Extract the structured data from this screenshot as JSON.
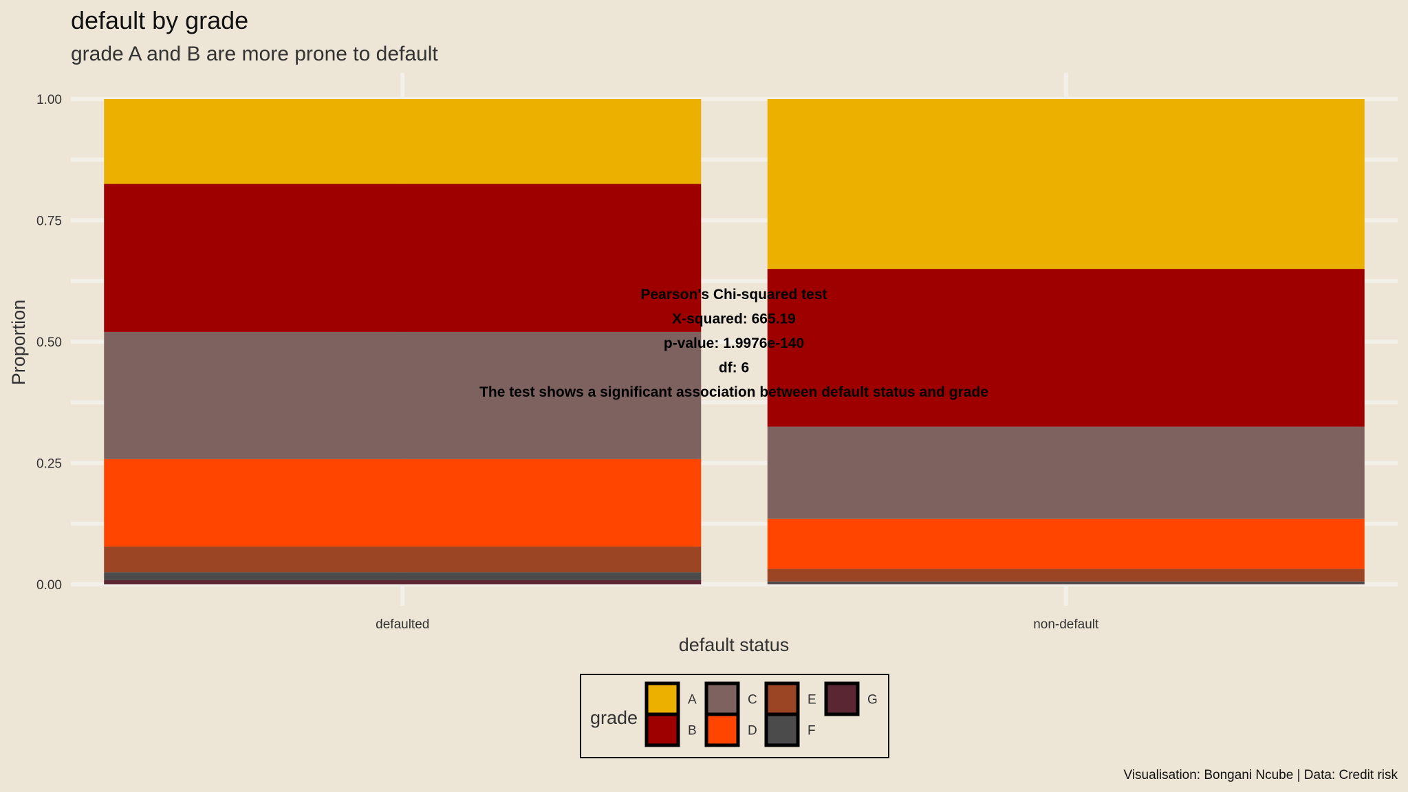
{
  "chart_data": {
    "type": "bar",
    "stacked": true,
    "position": "fill",
    "title": "default by grade",
    "subtitle": "grade A and B are more prone to default",
    "xlabel": "default status",
    "ylabel": "Proportion",
    "ylim": [
      0,
      1
    ],
    "yticks": [
      "0.00",
      "0.25",
      "0.50",
      "0.75",
      "1.00"
    ],
    "categories": [
      "defaulted",
      "non-default"
    ],
    "series": [
      {
        "name": "A",
        "color": "#ebb000",
        "values": [
          0.175,
          0.35
        ]
      },
      {
        "name": "B",
        "color": "#9e0000",
        "values": [
          0.305,
          0.325
        ]
      },
      {
        "name": "C",
        "color": "#7e6260",
        "values": [
          0.262,
          0.19
        ]
      },
      {
        "name": "D",
        "color": "#ff4500",
        "values": [
          0.18,
          0.103
        ]
      },
      {
        "name": "E",
        "color": "#9b4525",
        "values": [
          0.053,
          0.026
        ]
      },
      {
        "name": "F",
        "color": "#4b4b4b",
        "values": [
          0.016,
          0.005
        ]
      },
      {
        "name": "G",
        "color": "#5a2634",
        "values": [
          0.009,
          0.001
        ]
      }
    ],
    "annotation": [
      "Pearson's Chi-squared test",
      "X-squared: 665.19",
      "p-value: 1.9976e-140",
      "df: 6",
      "The test shows a significant association between default status and grade"
    ],
    "legend": {
      "title": "grade",
      "placement": "bottom"
    },
    "caption": "Visualisation: Bongani Ncube | Data: Credit risk",
    "grid": true
  }
}
